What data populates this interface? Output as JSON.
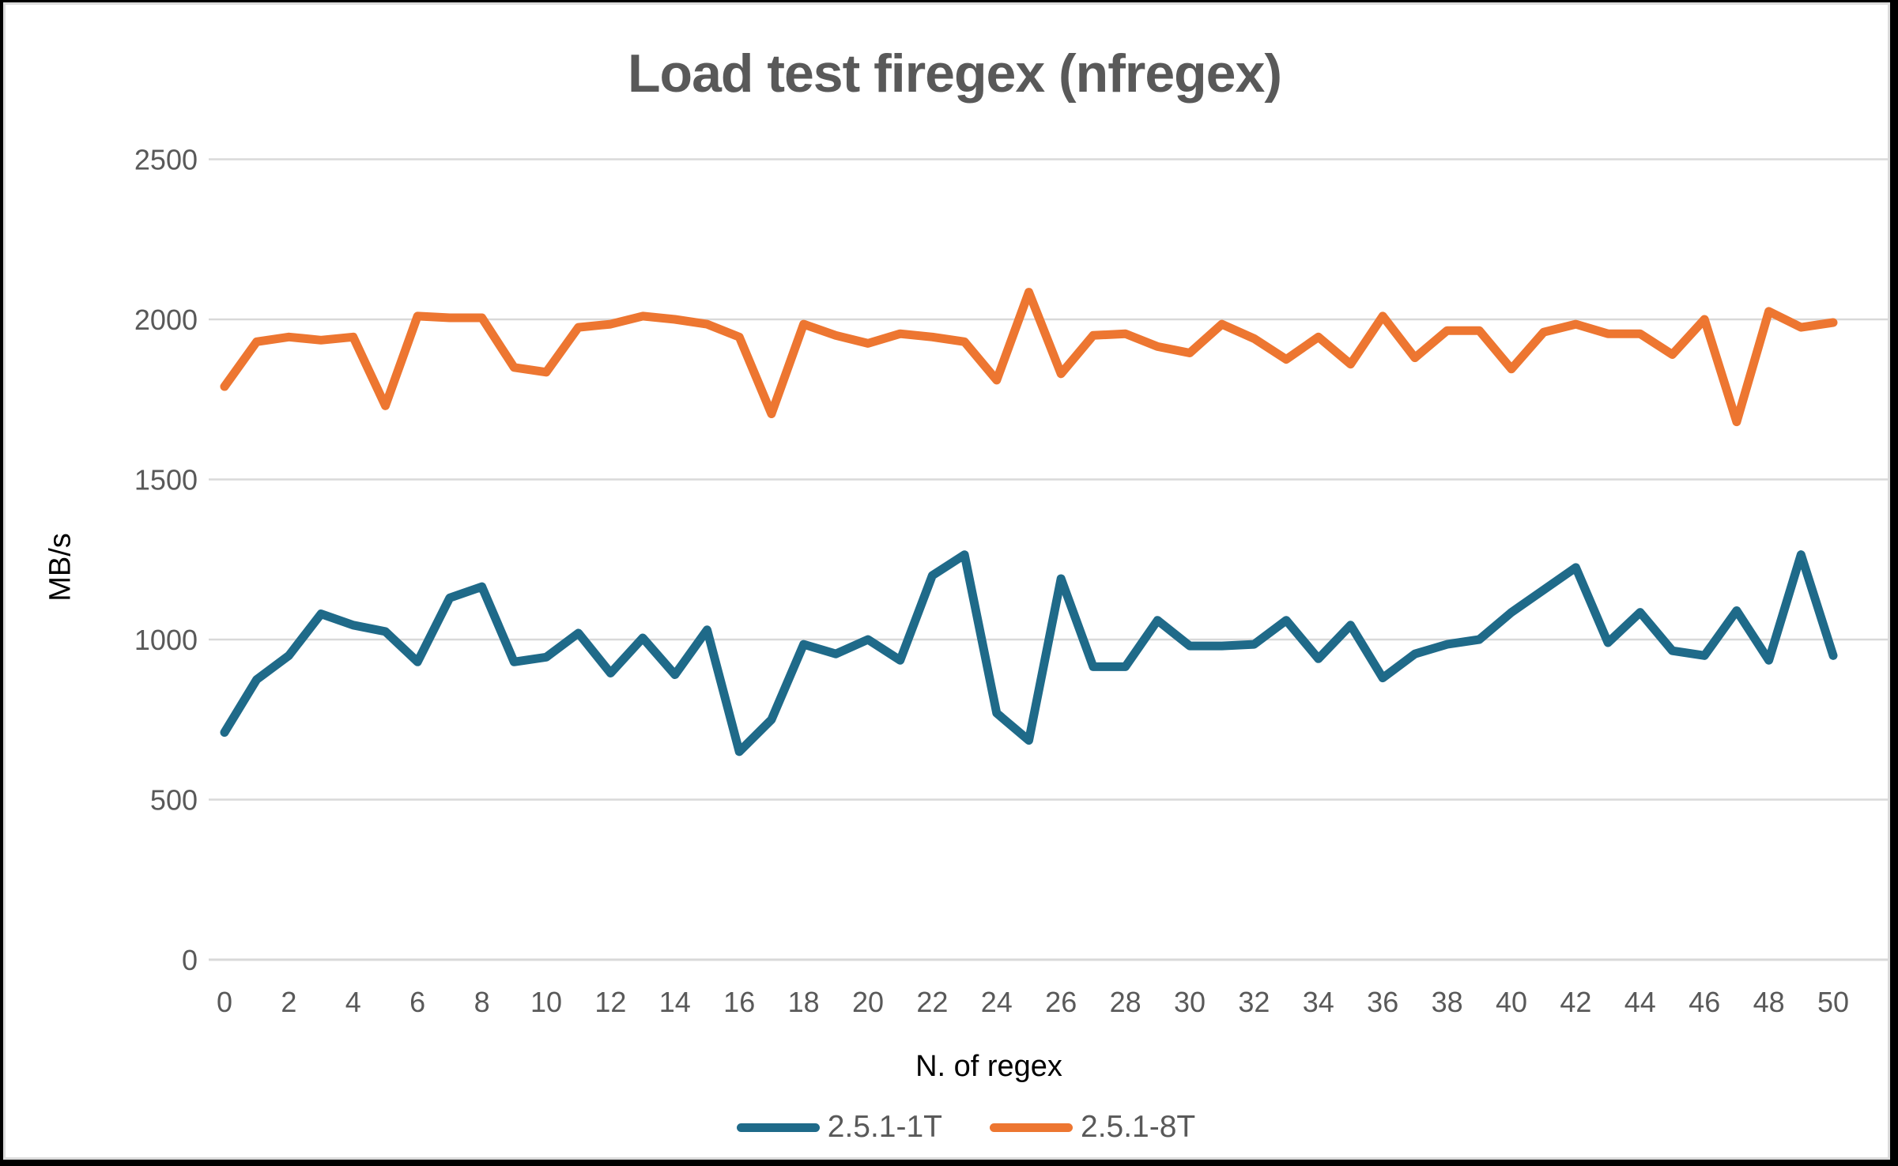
{
  "chart": {
    "title": "Load test firegex (nfregex)",
    "y_axis_label": "MB/s",
    "x_axis_label": "N. of regex",
    "colors": {
      "series_1t": "#1F6A89",
      "series_8t": "#ED7631",
      "gridline": "#D9D9D9",
      "tick_text": "#595959",
      "title_text": "#595959"
    },
    "legend": [
      {
        "label": "2.5.1-1T",
        "color": "#1F6A89"
      },
      {
        "label": "2.5.1-8T",
        "color": "#ED7631"
      }
    ]
  },
  "chart_data": {
    "type": "line",
    "title": "Load test firegex (nfregex)",
    "xlabel": "N. of regex",
    "ylabel": "MB/s",
    "xlim": [
      0,
      50
    ],
    "ylim": [
      0,
      2500
    ],
    "x_tick_step": 2,
    "y_ticks": [
      0,
      500,
      1000,
      1500,
      2000,
      2500
    ],
    "grid": "horizontal",
    "legend_position": "bottom",
    "x": [
      0,
      1,
      2,
      3,
      4,
      5,
      6,
      7,
      8,
      9,
      10,
      11,
      12,
      13,
      14,
      15,
      16,
      17,
      18,
      19,
      20,
      21,
      22,
      23,
      24,
      25,
      26,
      27,
      28,
      29,
      30,
      31,
      32,
      33,
      34,
      35,
      36,
      37,
      38,
      39,
      40,
      41,
      42,
      43,
      44,
      45,
      46,
      47,
      48,
      49,
      50
    ],
    "series": [
      {
        "name": "2.5.1-1T",
        "color": "#1F6A89",
        "values": [
          710,
          875,
          950,
          1080,
          1045,
          1025,
          930,
          1130,
          1165,
          930,
          945,
          1020,
          895,
          1005,
          890,
          1030,
          650,
          750,
          985,
          955,
          1000,
          935,
          1200,
          1265,
          770,
          685,
          1190,
          915,
          915,
          1060,
          980,
          980,
          985,
          1060,
          940,
          1045,
          880,
          955,
          985,
          1000,
          1085,
          1155,
          1225,
          990,
          1085,
          965,
          950,
          1090,
          935,
          1265,
          950
        ]
      },
      {
        "name": "2.5.1-8T",
        "color": "#ED7631",
        "values": [
          1790,
          1930,
          1945,
          1935,
          1945,
          1730,
          2010,
          2005,
          2005,
          1850,
          1835,
          1975,
          1985,
          2010,
          2000,
          1985,
          1945,
          1705,
          1985,
          1950,
          1925,
          1955,
          1945,
          1930,
          1810,
          2085,
          1830,
          1950,
          1955,
          1915,
          1895,
          1985,
          1940,
          1875,
          1945,
          1860,
          2010,
          1880,
          1965,
          1965,
          1845,
          1960,
          1985,
          1955,
          1955,
          1890,
          2000,
          1680,
          2025,
          1975,
          1990
        ]
      }
    ]
  }
}
